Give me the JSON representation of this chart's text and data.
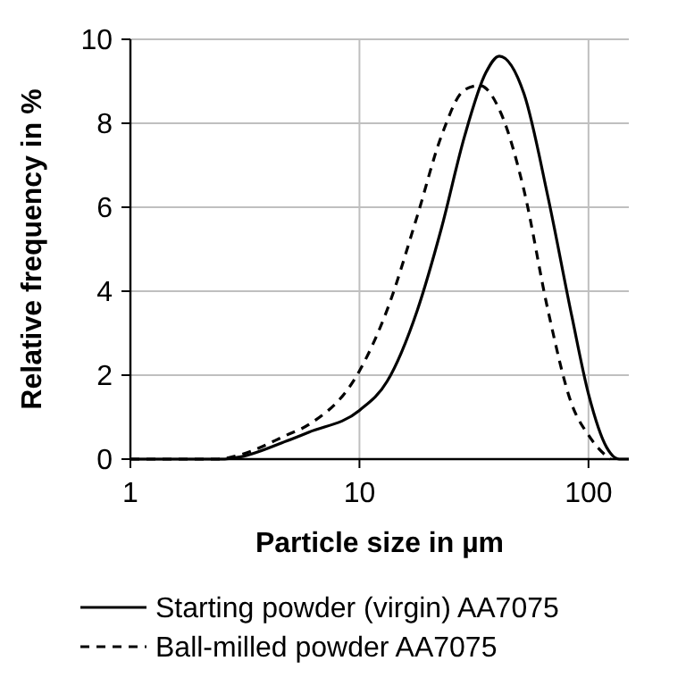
{
  "chart_data": {
    "type": "line",
    "xlabel": "Particle size in µm",
    "ylabel": "Relative frequency in %",
    "log": "x",
    "xlim": [
      1,
      150
    ],
    "xticks": [
      1,
      10,
      100
    ],
    "ylim": [
      0,
      10
    ],
    "yticks": [
      0,
      2,
      4,
      6,
      8,
      10
    ],
    "grid": true,
    "legend": "bottom",
    "series": [
      {
        "name": "Starting powder (virgin) AA7075",
        "color": "#000000",
        "line_style": "solid",
        "x": [
          1,
          2.5,
          3,
          4.8,
          6,
          10,
          13.2,
          17.9,
          22.8,
          28.8,
          35.6,
          40.8,
          52.3,
          66.5,
          84.6,
          100,
          120,
          136,
          150
        ],
        "values": [
          0,
          0,
          0.05,
          0.43,
          0.64,
          1.16,
          1.85,
          3.55,
          5.5,
          7.7,
          9.2,
          9.6,
          8.7,
          6.25,
          3.4,
          1.55,
          0.28,
          0,
          0
        ]
      },
      {
        "name": "Ball-milled powder AA7075",
        "color": "#000000",
        "line_style": "dashed",
        "x": [
          1,
          2.4,
          3,
          4.8,
          6,
          10,
          13.2,
          17.9,
          22.8,
          28.8,
          33.5,
          41.4,
          52.3,
          66.5,
          84.6,
          100,
          120,
          125
        ],
        "values": [
          0,
          0,
          0.1,
          0.57,
          0.82,
          2.1,
          3.55,
          5.8,
          7.7,
          8.8,
          8.9,
          8.25,
          6.4,
          3.55,
          1.3,
          0.57,
          0.07,
          0
        ]
      }
    ]
  }
}
